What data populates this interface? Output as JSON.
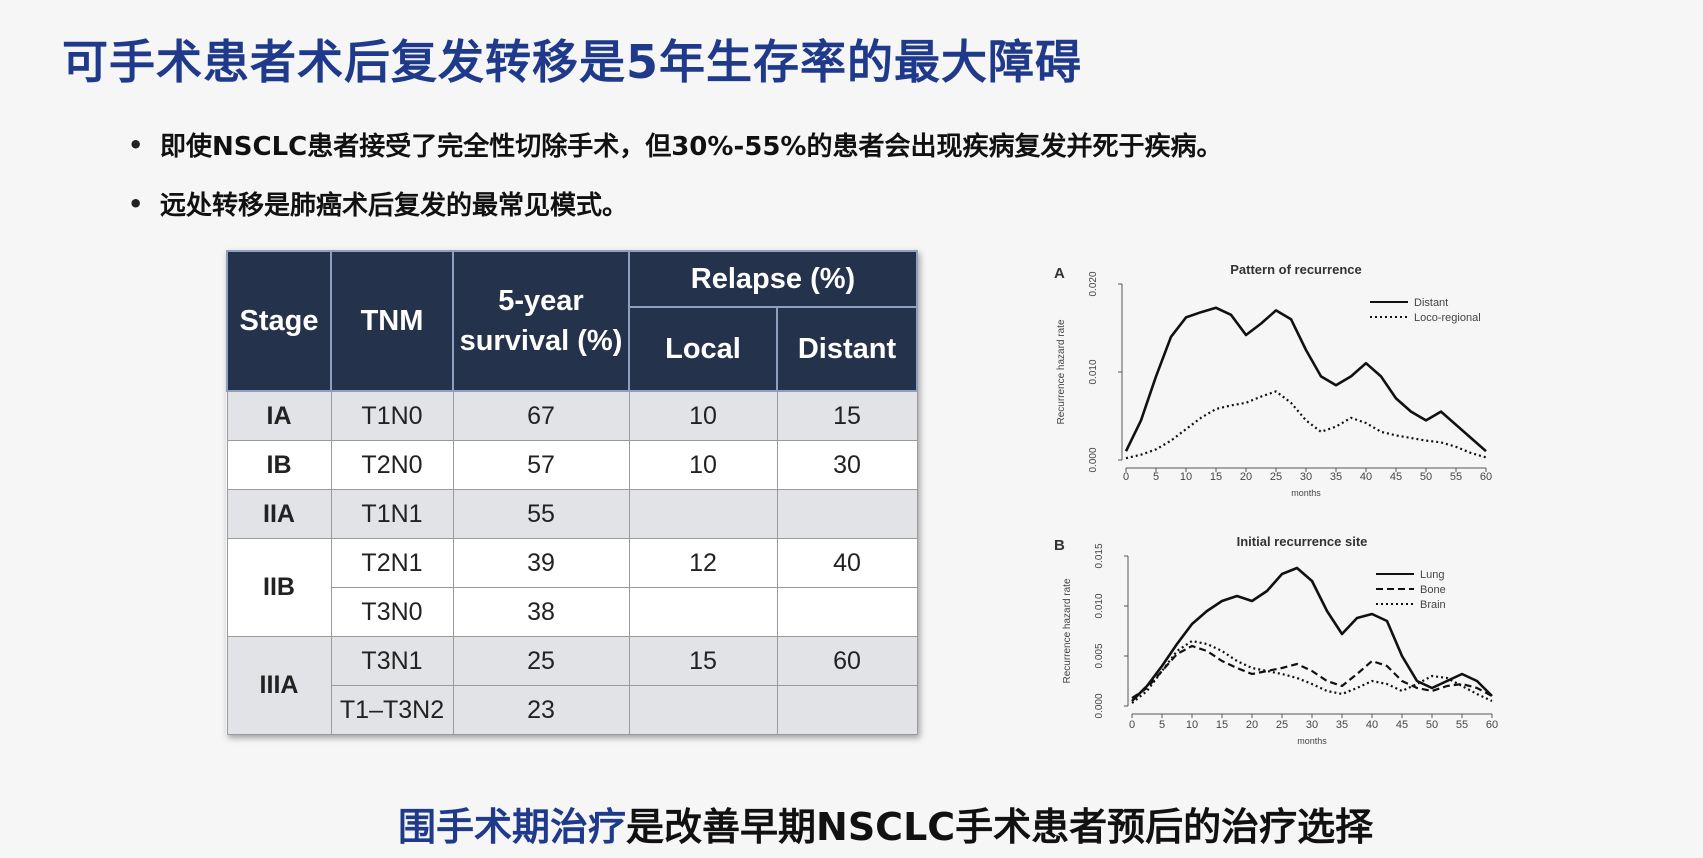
{
  "title": "可手术患者术后复发转移是5年生存率的最大障碍",
  "bullets": [
    "即使NSCLC患者接受了完全性切除手术，但30%-55%的患者会出现疾病复发并死于疾病。",
    "远处转移是肺癌术后复发的最常见模式。"
  ],
  "table": {
    "headers": {
      "stage": "Stage",
      "tnm": "TNM",
      "survival": "5-year survival (%)",
      "relapse": "Relapse (%)",
      "local": "Local",
      "distant": "Distant"
    },
    "rows": {
      "r1": {
        "stage": "IA",
        "tnm": "T1N0",
        "survival": "67",
        "local": "10",
        "distant": "15"
      },
      "r2": {
        "stage": "IB",
        "tnm": "T2N0",
        "survival": "57",
        "local": "10",
        "distant": "30"
      },
      "r3": {
        "stage": "IIA",
        "tnm": "T1N1",
        "survival": "55",
        "local": "",
        "distant": ""
      },
      "r4": {
        "stage": "IIB",
        "tnm": "T2N1",
        "survival": "39",
        "local": "12",
        "distant": "40"
      },
      "r5": {
        "tnm": "T3N0",
        "survival": "38",
        "local": "",
        "distant": ""
      },
      "r6": {
        "stage": "IIIA",
        "tnm": "T3N1",
        "survival": "25",
        "local": "15",
        "distant": "60"
      },
      "r7": {
        "tnm": "T1–T3N2",
        "survival": "23",
        "local": "",
        "distant": ""
      }
    }
  },
  "chart_data": [
    {
      "type": "line",
      "panel": "A",
      "title": "Pattern of recurrence",
      "xlabel": "months",
      "ylabel": "Recurrence hazard rate",
      "xlim": [
        0,
        60
      ],
      "ylim": [
        0,
        0.02
      ],
      "xticks": [
        "0",
        "5",
        "10",
        "15",
        "20",
        "25",
        "30",
        "35",
        "40",
        "45",
        "50",
        "55",
        "60"
      ],
      "yticks": [
        "0.000",
        "0.010",
        "0.020"
      ],
      "legend": "top-right",
      "x": [
        0,
        2.5,
        5,
        7.5,
        10,
        12.5,
        15,
        17.5,
        20,
        22.5,
        25,
        27.5,
        30,
        32.5,
        35,
        37.5,
        40,
        42.5,
        45,
        47.5,
        50,
        52.5,
        55,
        57.5,
        60
      ],
      "series": [
        {
          "name": "Distant",
          "style": "solid",
          "values": [
            0.001,
            0.0045,
            0.0095,
            0.014,
            0.0162,
            0.0168,
            0.0173,
            0.0165,
            0.0142,
            0.0155,
            0.017,
            0.016,
            0.0125,
            0.0095,
            0.0085,
            0.0095,
            0.011,
            0.0095,
            0.007,
            0.0055,
            0.0045,
            0.0055,
            0.004,
            0.0025,
            0.001
          ]
        },
        {
          "name": "Loco-regional",
          "style": "dotted",
          "values": [
            0.0002,
            0.0006,
            0.0012,
            0.0022,
            0.0035,
            0.0048,
            0.0058,
            0.0062,
            0.0065,
            0.0072,
            0.0078,
            0.0065,
            0.0045,
            0.0032,
            0.0038,
            0.0048,
            0.0042,
            0.0032,
            0.0028,
            0.0025,
            0.0022,
            0.002,
            0.0015,
            0.0008,
            0.0003
          ]
        }
      ]
    },
    {
      "type": "line",
      "panel": "B",
      "title": "Initial recurrence site",
      "xlabel": "months",
      "ylabel": "Recurrence hazard rate",
      "xlim": [
        0,
        60
      ],
      "ylim": [
        0,
        0.015
      ],
      "xticks": [
        "0",
        "5",
        "10",
        "15",
        "20",
        "25",
        "30",
        "35",
        "40",
        "45",
        "50",
        "55",
        "60"
      ],
      "yticks": [
        "0.000",
        "0.005",
        "0.010",
        "0.015"
      ],
      "legend": "top-right",
      "x": [
        0,
        2.5,
        5,
        7.5,
        10,
        12.5,
        15,
        17.5,
        20,
        22.5,
        25,
        27.5,
        30,
        32.5,
        35,
        37.5,
        40,
        42.5,
        45,
        47.5,
        50,
        52.5,
        55,
        57.5,
        60
      ],
      "series": [
        {
          "name": "Lung",
          "style": "solid",
          "values": [
            0.0005,
            0.002,
            0.004,
            0.0062,
            0.0082,
            0.0095,
            0.0105,
            0.011,
            0.0105,
            0.0115,
            0.0132,
            0.0138,
            0.0125,
            0.0095,
            0.0072,
            0.0088,
            0.0092,
            0.0085,
            0.005,
            0.0025,
            0.0018,
            0.0025,
            0.0032,
            0.0025,
            0.001
          ]
        },
        {
          "name": "Bone",
          "style": "dashed",
          "values": [
            0.0008,
            0.0018,
            0.0035,
            0.0052,
            0.006,
            0.0055,
            0.0045,
            0.0038,
            0.0032,
            0.0035,
            0.0038,
            0.0042,
            0.0035,
            0.0025,
            0.002,
            0.0032,
            0.0045,
            0.004,
            0.0025,
            0.0018,
            0.0015,
            0.002,
            0.0022,
            0.0018,
            0.001
          ]
        },
        {
          "name": "Brain",
          "style": "dotted",
          "values": [
            0.0003,
            0.0015,
            0.0035,
            0.0055,
            0.0065,
            0.0062,
            0.0055,
            0.0045,
            0.0038,
            0.0035,
            0.0032,
            0.0028,
            0.0022,
            0.0015,
            0.0012,
            0.0018,
            0.0025,
            0.0022,
            0.0015,
            0.0022,
            0.003,
            0.0028,
            0.002,
            0.0012,
            0.0005
          ]
        }
      ]
    }
  ],
  "bottom": {
    "highlight": "围手术期治疗",
    "rest": "是改善早期NSCLC手术患者预后的治疗选择"
  },
  "colors": {
    "title": "#1f3a8a",
    "table_header": "#25324c",
    "row_shade": "#e2e3e6"
  }
}
